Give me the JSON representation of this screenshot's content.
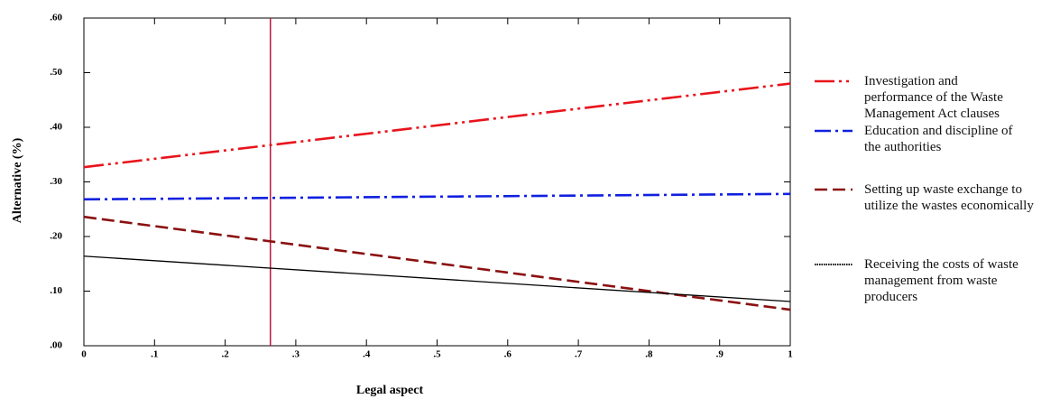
{
  "chart_data": {
    "type": "line",
    "x_label": "Legal aspect",
    "y_label": "Alternative (%)",
    "x": [
      0,
      1
    ],
    "series": [
      {
        "name": "Investigation and performance of the Waste Management Act clauses",
        "color": "#e8141c",
        "dash": "22 5 3 5 3 5",
        "values": [
          0.327,
          0.48
        ]
      },
      {
        "name": "Education and discipline of the authorities",
        "color": "#1020e0",
        "dash": "18 5 3 5",
        "values": [
          0.268,
          0.278
        ]
      },
      {
        "name": "Setting up waste exchange to utilize the wastes economically",
        "color": "#8b1010",
        "dash": "14 6",
        "values": [
          0.236,
          0.066
        ]
      },
      {
        "name": "Receiving the costs of waste management from waste producers",
        "color": "#000000",
        "dash": "none",
        "values": [
          0.164,
          0.081
        ]
      }
    ],
    "xlim": [
      0,
      1
    ],
    "xticks": [
      0,
      {
        "value": 0.1,
        "label": ".1"
      },
      {
        "value": 0.2,
        "label": ".2"
      },
      {
        "value": 0.3,
        "label": ".3"
      },
      {
        "value": 0.4,
        "label": ".4"
      },
      {
        "value": 0.5,
        "label": ".5"
      },
      {
        "value": 0.6,
        "label": ".6"
      },
      {
        "value": 0.7,
        "label": ".7"
      },
      {
        "value": 0.8,
        "label": ".8"
      },
      {
        "value": 0.9,
        "label": ".9"
      },
      1
    ],
    "ylim": [
      0,
      0.6
    ],
    "yticks": [
      {
        "value": 0,
        "label": ".00"
      },
      {
        "value": 0.1,
        "label": ".10"
      },
      {
        "value": 0.2,
        "label": ".20"
      },
      {
        "value": 0.3,
        "label": ".30"
      },
      {
        "value": 0.4,
        "label": ".40"
      },
      {
        "value": 0.5,
        "label": ".50"
      },
      {
        "value": 0.6,
        "label": ".60"
      }
    ],
    "vline": 0.264,
    "vline_color": "#c0143c"
  }
}
